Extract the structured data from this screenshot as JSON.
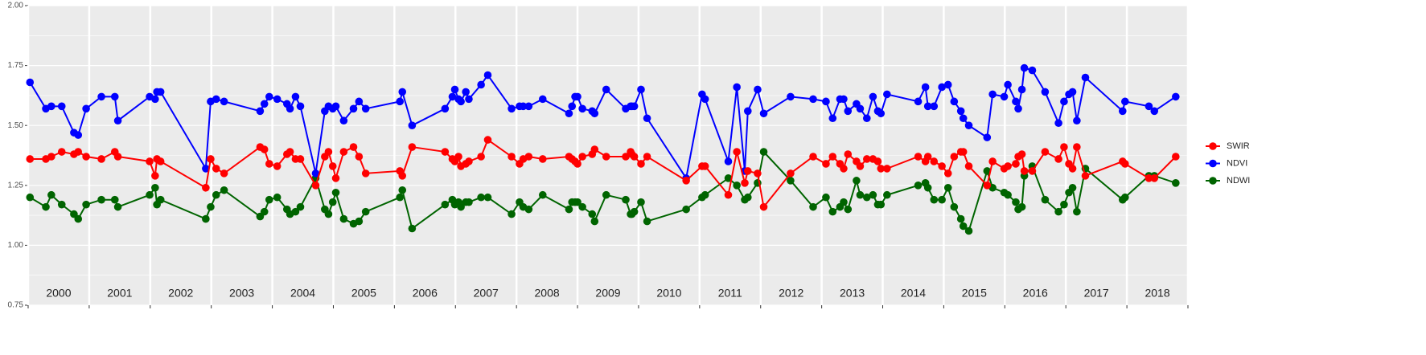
{
  "chart_data": {
    "type": "line",
    "x": [
      2000.03,
      2000.29,
      2000.38,
      2000.55,
      2000.75,
      2000.82,
      2000.95,
      2001.2,
      2001.42,
      2001.47,
      2001.99,
      2002.08,
      2002.11,
      2002.17,
      2002.91,
      2002.99,
      2003.08,
      2003.21,
      2003.8,
      2003.87,
      2003.95,
      2004.08,
      2004.24,
      2004.29,
      2004.38,
      2004.46,
      2004.71,
      2004.86,
      2004.92,
      2004.99,
      2005.04,
      2005.17,
      2005.33,
      2005.42,
      2005.53,
      2006.09,
      2006.13,
      2006.29,
      2006.83,
      2006.95,
      2006.99,
      2007.05,
      2007.09,
      2007.17,
      2007.22,
      2007.42,
      2007.53,
      2007.92,
      2008.05,
      2008.11,
      2008.2,
      2008.43,
      2008.86,
      2008.91,
      2008.96,
      2009.0,
      2009.08,
      2009.24,
      2009.28,
      2009.47,
      2009.79,
      2009.87,
      2009.89,
      2009.93,
      2010.04,
      2010.14,
      2010.78,
      2011.04,
      2011.09,
      2011.47,
      2011.61,
      2011.74,
      2011.79,
      2011.95,
      2012.05,
      2012.49,
      2012.86,
      2013.07,
      2013.18,
      2013.3,
      2013.36,
      2013.43,
      2013.57,
      2013.63,
      2013.74,
      2013.84,
      2013.92,
      2013.97,
      2014.07,
      2014.58,
      2014.7,
      2014.74,
      2014.84,
      2014.97,
      2015.07,
      2015.17,
      2015.28,
      2015.32,
      2015.41,
      2015.71,
      2015.8,
      2015.99,
      2016.05,
      2016.18,
      2016.22,
      2016.28,
      2016.32,
      2016.45,
      2016.66,
      2016.88,
      2016.97,
      2017.05,
      2017.11,
      2017.18,
      2017.32,
      2017.93,
      2017.97,
      2018.36,
      2018.45,
      2018.8
    ],
    "series": [
      {
        "name": "SWIR",
        "color": "#ff0000",
        "values": [
          1.36,
          1.36,
          1.37,
          1.39,
          1.38,
          1.39,
          1.37,
          1.36,
          1.39,
          1.37,
          1.35,
          1.29,
          1.36,
          1.35,
          1.24,
          1.36,
          1.32,
          1.3,
          1.41,
          1.4,
          1.34,
          1.33,
          1.38,
          1.39,
          1.36,
          1.36,
          1.25,
          1.37,
          1.39,
          1.33,
          1.28,
          1.39,
          1.41,
          1.37,
          1.3,
          1.31,
          1.29,
          1.41,
          1.39,
          1.36,
          1.35,
          1.37,
          1.33,
          1.34,
          1.35,
          1.37,
          1.44,
          1.37,
          1.34,
          1.36,
          1.37,
          1.36,
          1.37,
          1.36,
          1.35,
          1.34,
          1.37,
          1.38,
          1.4,
          1.37,
          1.37,
          1.39,
          1.38,
          1.37,
          1.34,
          1.37,
          1.27,
          1.33,
          1.33,
          1.21,
          1.39,
          1.26,
          1.31,
          1.3,
          1.16,
          1.3,
          1.37,
          1.34,
          1.37,
          1.34,
          1.32,
          1.38,
          1.35,
          1.33,
          1.36,
          1.36,
          1.35,
          1.32,
          1.32,
          1.37,
          1.35,
          1.37,
          1.35,
          1.33,
          1.3,
          1.37,
          1.39,
          1.39,
          1.33,
          1.25,
          1.35,
          1.32,
          1.33,
          1.34,
          1.37,
          1.38,
          1.31,
          1.31,
          1.39,
          1.36,
          1.41,
          1.34,
          1.32,
          1.41,
          1.29,
          1.35,
          1.34,
          1.28,
          1.28,
          1.37
        ]
      },
      {
        "name": "NDVI",
        "color": "#0000ff",
        "values": [
          1.68,
          1.57,
          1.58,
          1.58,
          1.47,
          1.46,
          1.57,
          1.62,
          1.62,
          1.52,
          1.62,
          1.61,
          1.64,
          1.64,
          1.32,
          1.6,
          1.61,
          1.6,
          1.56,
          1.59,
          1.62,
          1.61,
          1.59,
          1.57,
          1.62,
          1.58,
          1.3,
          1.56,
          1.58,
          1.57,
          1.58,
          1.52,
          1.57,
          1.6,
          1.57,
          1.6,
          1.64,
          1.5,
          1.57,
          1.62,
          1.65,
          1.61,
          1.6,
          1.64,
          1.61,
          1.67,
          1.71,
          1.57,
          1.58,
          1.58,
          1.58,
          1.61,
          1.55,
          1.58,
          1.62,
          1.62,
          1.57,
          1.56,
          1.55,
          1.65,
          1.57,
          1.58,
          1.58,
          1.58,
          1.65,
          1.53,
          1.28,
          1.63,
          1.61,
          1.35,
          1.66,
          1.31,
          1.56,
          1.65,
          1.55,
          1.62,
          1.61,
          1.6,
          1.53,
          1.61,
          1.61,
          1.56,
          1.59,
          1.57,
          1.53,
          1.62,
          1.56,
          1.55,
          1.63,
          1.6,
          1.66,
          1.58,
          1.58,
          1.66,
          1.67,
          1.6,
          1.56,
          1.53,
          1.5,
          1.45,
          1.63,
          1.62,
          1.67,
          1.6,
          1.57,
          1.65,
          1.74,
          1.73,
          1.64,
          1.51,
          1.6,
          1.63,
          1.64,
          1.52,
          1.7,
          1.56,
          1.6,
          1.58,
          1.56,
          1.62
        ]
      },
      {
        "name": "NDWI",
        "color": "#006400",
        "values": [
          1.2,
          1.16,
          1.21,
          1.17,
          1.13,
          1.11,
          1.17,
          1.19,
          1.19,
          1.16,
          1.21,
          1.24,
          1.17,
          1.19,
          1.11,
          1.16,
          1.21,
          1.23,
          1.12,
          1.14,
          1.19,
          1.2,
          1.15,
          1.13,
          1.14,
          1.16,
          1.28,
          1.15,
          1.13,
          1.18,
          1.22,
          1.11,
          1.09,
          1.1,
          1.14,
          1.2,
          1.23,
          1.07,
          1.17,
          1.19,
          1.17,
          1.18,
          1.16,
          1.18,
          1.18,
          1.2,
          1.2,
          1.13,
          1.18,
          1.16,
          1.15,
          1.21,
          1.15,
          1.18,
          1.18,
          1.18,
          1.16,
          1.13,
          1.1,
          1.21,
          1.19,
          1.13,
          1.13,
          1.14,
          1.18,
          1.1,
          1.15,
          1.2,
          1.21,
          1.28,
          1.25,
          1.19,
          1.2,
          1.26,
          1.39,
          1.27,
          1.16,
          1.2,
          1.14,
          1.16,
          1.18,
          1.15,
          1.27,
          1.21,
          1.2,
          1.21,
          1.17,
          1.17,
          1.21,
          1.25,
          1.26,
          1.24,
          1.19,
          1.19,
          1.24,
          1.16,
          1.11,
          1.08,
          1.06,
          1.31,
          1.24,
          1.22,
          1.21,
          1.18,
          1.15,
          1.16,
          1.29,
          1.33,
          1.19,
          1.14,
          1.17,
          1.22,
          1.24,
          1.14,
          1.32,
          1.19,
          1.2,
          1.29,
          1.29,
          1.26
        ]
      }
    ],
    "xlim": [
      2000,
      2019
    ],
    "xticks": [
      {
        "value": 2000.5,
        "label": "2000"
      },
      {
        "value": 2001.5,
        "label": "2001"
      },
      {
        "value": 2002.5,
        "label": "2002"
      },
      {
        "value": 2003.5,
        "label": "2003"
      },
      {
        "value": 2004.5,
        "label": "2004"
      },
      {
        "value": 2005.5,
        "label": "2005"
      },
      {
        "value": 2006.5,
        "label": "2006"
      },
      {
        "value": 2007.5,
        "label": "2007"
      },
      {
        "value": 2008.5,
        "label": "2008"
      },
      {
        "value": 2009.5,
        "label": "2009"
      },
      {
        "value": 2010.5,
        "label": "2010"
      },
      {
        "value": 2011.5,
        "label": "2011"
      },
      {
        "value": 2012.5,
        "label": "2012"
      },
      {
        "value": 2013.5,
        "label": "2013"
      },
      {
        "value": 2014.5,
        "label": "2014"
      },
      {
        "value": 2015.5,
        "label": "2015"
      },
      {
        "value": 2016.5,
        "label": "2016"
      },
      {
        "value": 2017.5,
        "label": "2017"
      },
      {
        "value": 2018.5,
        "label": "2018"
      }
    ],
    "xgrid": [
      2000,
      2001,
      2002,
      2003,
      2004,
      2005,
      2006,
      2007,
      2008,
      2009,
      2010,
      2011,
      2012,
      2013,
      2014,
      2015,
      2016,
      2017,
      2018,
      2019
    ],
    "ylim": [
      0.75,
      2.0
    ],
    "yticks": [
      {
        "value": 0.75,
        "label": "0.75"
      },
      {
        "value": 1.0,
        "label": "1.00"
      },
      {
        "value": 1.25,
        "label": "1.25"
      },
      {
        "value": 1.5,
        "label": "1.50"
      },
      {
        "value": 1.75,
        "label": "1.75"
      },
      {
        "value": 2.0,
        "label": "2.00"
      }
    ],
    "yminor": [
      0.875,
      1.125,
      1.375,
      1.625,
      1.875
    ],
    "grid": true,
    "legend": "right"
  }
}
